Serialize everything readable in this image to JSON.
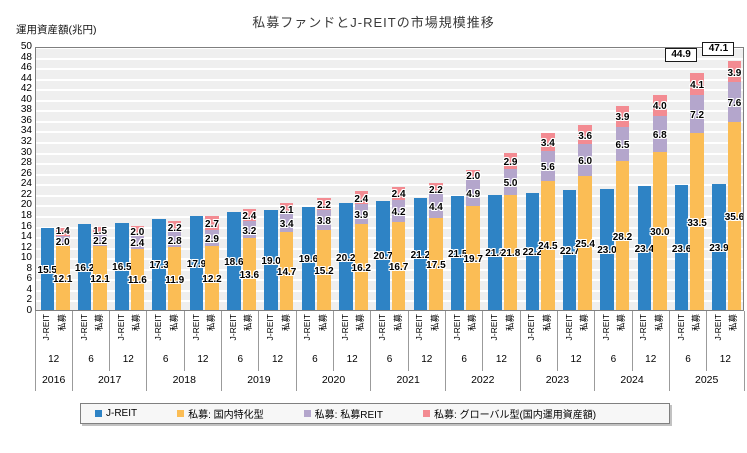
{
  "title": "私募ファンドとJ-REITの市場規模推移",
  "y_axis_title": "運用資産額(兆円)",
  "chart_data": {
    "type": "bar",
    "title": "私募ファンドとJ-REITの市場規模推移",
    "ylabel": "運用資産額(兆円)",
    "ylim": [
      0,
      50
    ],
    "ytick_step": 2,
    "grid": true,
    "legend_position": "bottom",
    "plot_bg": "#efefef",
    "gridline_color": "#ffffff",
    "pair_labels": [
      "J-REIT",
      "私募"
    ],
    "month_labels": [
      "12",
      "6",
      "12",
      "6",
      "12",
      "6",
      "12",
      "6",
      "12",
      "6",
      "12",
      "6",
      "12",
      "6",
      "12",
      "6",
      "12",
      "6",
      "12"
    ],
    "year_groups": [
      {
        "label": "2016",
        "span": 1
      },
      {
        "label": "2017",
        "span": 2
      },
      {
        "label": "2018",
        "span": 2
      },
      {
        "label": "2019",
        "span": 2
      },
      {
        "label": "2020",
        "span": 2
      },
      {
        "label": "2021",
        "span": 2
      },
      {
        "label": "2022",
        "span": 2
      },
      {
        "label": "2023",
        "span": 2
      },
      {
        "label": "2024",
        "span": 2
      },
      {
        "label": "2025",
        "span": 2
      }
    ],
    "categories": [
      "2016-12",
      "2017-6",
      "2017-12",
      "2018-6",
      "2018-12",
      "2019-6",
      "2019-12",
      "2020-6",
      "2020-12",
      "2021-6",
      "2021-12",
      "2022-6",
      "2022-12",
      "2023-6",
      "2023-12",
      "2024-6",
      "2024-12",
      "2025-6",
      "2025-12"
    ],
    "series": [
      {
        "key": "jreit",
        "name": "J-REIT",
        "color": "#2e83c5",
        "stack": "jreit",
        "values": [
          15.5,
          16.2,
          16.5,
          17.3,
          17.9,
          18.6,
          19.0,
          19.6,
          20.2,
          20.7,
          21.2,
          21.5,
          21.8,
          22.2,
          22.7,
          23.0,
          23.4,
          23.6,
          23.9
        ]
      },
      {
        "key": "domestic",
        "name": "私募: 国内特化型",
        "color": "#fbbd55",
        "stack": "shibo",
        "values": [
          12.1,
          12.1,
          11.6,
          11.9,
          12.2,
          13.6,
          14.7,
          15.2,
          16.2,
          16.7,
          17.5,
          19.7,
          21.8,
          24.5,
          25.4,
          28.2,
          30.0,
          33.5,
          35.6
        ]
      },
      {
        "key": "private-reit",
        "name": "私募: 私募REIT",
        "color": "#b4a6cc",
        "stack": "shibo",
        "values": [
          2.0,
          2.2,
          2.4,
          2.8,
          2.9,
          3.2,
          3.4,
          3.8,
          3.9,
          4.2,
          4.4,
          4.9,
          5.0,
          5.6,
          6.0,
          6.5,
          6.8,
          7.2,
          7.6
        ]
      },
      {
        "key": "global",
        "name": "私募: グローバル型(国内運用資産額)",
        "color": "#f38b92",
        "stack": "shibo",
        "values": [
          1.4,
          1.5,
          2.0,
          2.2,
          2.7,
          2.4,
          2.1,
          2.2,
          2.4,
          2.4,
          2.2,
          2.0,
          2.9,
          3.4,
          3.6,
          3.9,
          4.0,
          4.1,
          3.9
        ]
      }
    ],
    "callouts": [
      {
        "category": "2025-6",
        "index": 17,
        "label": "44.9"
      },
      {
        "category": "2025-12",
        "index": 18,
        "label": "47.1"
      }
    ]
  }
}
